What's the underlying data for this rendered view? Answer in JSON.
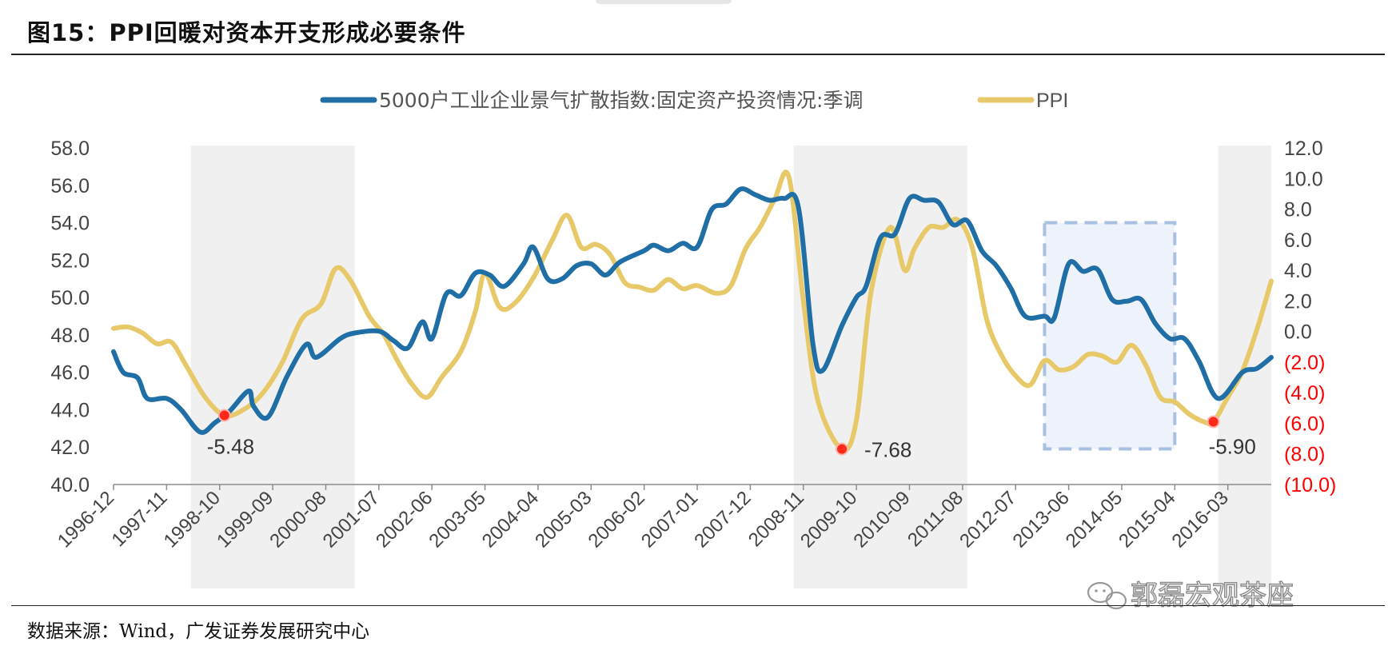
{
  "figure": {
    "title": "图15：PPI回暖对资本开支形成必要条件",
    "source": "数据来源：Wind，广发证券发展研究中心",
    "watermark": "郭磊宏观茶座"
  },
  "chart_data": {
    "type": "line",
    "legend_position": "top",
    "grid": false,
    "x_tick_labels": [
      "1996-12",
      "1997-11",
      "1998-10",
      "1999-09",
      "2000-08",
      "2001-07",
      "2002-06",
      "2003-05",
      "2004-04",
      "2005-03",
      "2006-02",
      "2007-01",
      "2007-12",
      "2008-11",
      "2009-10",
      "2010-09",
      "2011-08",
      "2012-07",
      "2013-06",
      "2014-05",
      "2015-04",
      "2016-03"
    ],
    "x_range": [
      "1996-12",
      "2016-12"
    ],
    "y_left": {
      "range": [
        40,
        58
      ],
      "tick_labels": [
        "40.0",
        "42.0",
        "44.0",
        "46.0",
        "48.0",
        "50.0",
        "52.0",
        "54.0",
        "56.0",
        "58.0"
      ]
    },
    "y_right": {
      "range": [
        -10,
        12
      ],
      "tick_labels": [
        "(10.0)",
        "(8.0)",
        "(6.0)",
        "(4.0)",
        "(2.0)",
        "0.0",
        "2.0",
        "4.0",
        "6.0",
        "8.0",
        "10.0",
        "12.0"
      ],
      "negative_label_color": "#ff0000"
    },
    "series": [
      {
        "name": "5000户工业企业景气扩散指数:固定资产投资情况:季调",
        "axis": "left",
        "color": "#1f6ea6",
        "points": [
          [
            "1996-12",
            47.1
          ],
          [
            "1997-02",
            46.0
          ],
          [
            "1997-05",
            45.7
          ],
          [
            "1997-07",
            44.6
          ],
          [
            "1997-11",
            44.6
          ],
          [
            "1998-02",
            44.0
          ],
          [
            "1998-06",
            42.8
          ],
          [
            "1998-09",
            43.3
          ],
          [
            "1998-12",
            43.9
          ],
          [
            "1999-04",
            45.0
          ],
          [
            "1999-05",
            44.2
          ],
          [
            "1999-08",
            43.6
          ],
          [
            "1999-12",
            45.8
          ],
          [
            "2000-04",
            47.5
          ],
          [
            "2000-06",
            46.8
          ],
          [
            "2000-11",
            47.8
          ],
          [
            "2001-02",
            48.1
          ],
          [
            "2001-07",
            48.2
          ],
          [
            "2001-10",
            47.7
          ],
          [
            "2002-01",
            47.3
          ],
          [
            "2002-04",
            48.7
          ],
          [
            "2002-06",
            47.8
          ],
          [
            "2002-09",
            50.2
          ],
          [
            "2002-12",
            50.1
          ],
          [
            "2003-03",
            51.3
          ],
          [
            "2003-06",
            51.2
          ],
          [
            "2003-09",
            50.6
          ],
          [
            "2004-01",
            51.8
          ],
          [
            "2004-03",
            52.7
          ],
          [
            "2004-06",
            51.0
          ],
          [
            "2004-09",
            51.0
          ],
          [
            "2004-12",
            51.7
          ],
          [
            "2005-03",
            51.8
          ],
          [
            "2005-06",
            51.2
          ],
          [
            "2005-09",
            51.9
          ],
          [
            "2006-02",
            52.5
          ],
          [
            "2006-04",
            52.8
          ],
          [
            "2006-07",
            52.5
          ],
          [
            "2006-10",
            52.9
          ],
          [
            "2007-01",
            52.7
          ],
          [
            "2007-04",
            54.7
          ],
          [
            "2007-07",
            55.0
          ],
          [
            "2007-10",
            55.8
          ],
          [
            "2008-01",
            55.5
          ],
          [
            "2008-04",
            55.2
          ],
          [
            "2008-07",
            55.3
          ],
          [
            "2008-10",
            54.8
          ],
          [
            "2009-01",
            47.5
          ],
          [
            "2009-03",
            46.1
          ],
          [
            "2009-07",
            48.5
          ],
          [
            "2009-10",
            50.0
          ],
          [
            "2009-12",
            50.6
          ],
          [
            "2010-03",
            53.2
          ],
          [
            "2010-06",
            53.4
          ],
          [
            "2010-09",
            55.3
          ],
          [
            "2010-12",
            55.2
          ],
          [
            "2011-03",
            55.1
          ],
          [
            "2011-06",
            53.9
          ],
          [
            "2011-09",
            54.1
          ],
          [
            "2011-12",
            52.5
          ],
          [
            "2012-03",
            51.7
          ],
          [
            "2012-06",
            50.5
          ],
          [
            "2012-09",
            49.0
          ],
          [
            "2013-01",
            49.0
          ],
          [
            "2013-03",
            48.9
          ],
          [
            "2013-06",
            51.8
          ],
          [
            "2013-09",
            51.4
          ],
          [
            "2013-12",
            51.5
          ],
          [
            "2014-03",
            49.9
          ],
          [
            "2014-06",
            49.8
          ],
          [
            "2014-09",
            49.9
          ],
          [
            "2014-12",
            48.6
          ],
          [
            "2015-03",
            47.8
          ],
          [
            "2015-06",
            47.8
          ],
          [
            "2015-09",
            46.6
          ],
          [
            "2016-01",
            44.6
          ],
          [
            "2016-06",
            46.0
          ],
          [
            "2016-09",
            46.2
          ],
          [
            "2016-12",
            46.8
          ]
        ]
      },
      {
        "name": "PPI",
        "axis": "right",
        "color": "#e8c96a",
        "points": [
          [
            "1996-12",
            0.2
          ],
          [
            "1997-03",
            0.3
          ],
          [
            "1997-06",
            -0.1
          ],
          [
            "1997-09",
            -0.8
          ],
          [
            "1997-12",
            -0.7
          ],
          [
            "1998-03",
            -2.2
          ],
          [
            "1998-07",
            -4.3
          ],
          [
            "1998-11",
            -5.48
          ],
          [
            "1999-03",
            -5.1
          ],
          [
            "1999-07",
            -4.0
          ],
          [
            "1999-11",
            -2.0
          ],
          [
            "2000-03",
            0.8
          ],
          [
            "2000-07",
            1.8
          ],
          [
            "2000-10",
            4.1
          ],
          [
            "2001-01",
            3.4
          ],
          [
            "2001-05",
            1.0
          ],
          [
            "2001-08",
            -0.2
          ],
          [
            "2001-11",
            -2.0
          ],
          [
            "2002-02",
            -3.5
          ],
          [
            "2002-05",
            -4.3
          ],
          [
            "2002-08",
            -3.0
          ],
          [
            "2002-12",
            -1.3
          ],
          [
            "2003-03",
            1.3
          ],
          [
            "2003-05",
            3.8
          ],
          [
            "2003-08",
            1.6
          ],
          [
            "2003-11",
            1.8
          ],
          [
            "2004-03",
            3.5
          ],
          [
            "2004-07",
            6.0
          ],
          [
            "2004-10",
            7.6
          ],
          [
            "2005-01",
            5.5
          ],
          [
            "2005-04",
            5.7
          ],
          [
            "2005-07",
            5.0
          ],
          [
            "2005-10",
            3.2
          ],
          [
            "2006-01",
            2.9
          ],
          [
            "2006-04",
            2.7
          ],
          [
            "2006-07",
            3.4
          ],
          [
            "2006-10",
            2.8
          ],
          [
            "2007-01",
            3.0
          ],
          [
            "2007-05",
            2.5
          ],
          [
            "2007-08",
            3.0
          ],
          [
            "2007-11",
            5.4
          ],
          [
            "2008-02",
            6.8
          ],
          [
            "2008-05",
            8.6
          ],
          [
            "2008-08",
            10.1
          ],
          [
            "2008-11",
            2.0
          ],
          [
            "2009-02",
            -4.5
          ],
          [
            "2009-07",
            -7.68
          ],
          [
            "2009-10",
            -5.8
          ],
          [
            "2010-01",
            2.5
          ],
          [
            "2010-05",
            6.8
          ],
          [
            "2010-08",
            4.0
          ],
          [
            "2010-10",
            5.4
          ],
          [
            "2011-01",
            6.8
          ],
          [
            "2011-04",
            6.8
          ],
          [
            "2011-07",
            7.3
          ],
          [
            "2011-10",
            5.5
          ],
          [
            "2012-01",
            0.8
          ],
          [
            "2012-04",
            -1.5
          ],
          [
            "2012-07",
            -2.9
          ],
          [
            "2012-10",
            -3.5
          ],
          [
            "2013-01",
            -1.9
          ],
          [
            "2013-04",
            -2.5
          ],
          [
            "2013-07",
            -2.3
          ],
          [
            "2013-10",
            -1.5
          ],
          [
            "2014-01",
            -1.6
          ],
          [
            "2014-04",
            -2.0
          ],
          [
            "2014-07",
            -0.9
          ],
          [
            "2014-10",
            -2.2
          ],
          [
            "2015-01",
            -4.3
          ],
          [
            "2015-04",
            -4.6
          ],
          [
            "2015-07",
            -5.4
          ],
          [
            "2015-10",
            -5.9
          ],
          [
            "2015-12",
            -5.9
          ],
          [
            "2016-03",
            -4.3
          ],
          [
            "2016-06",
            -2.6
          ],
          [
            "2016-09",
            0.1
          ],
          [
            "2016-12",
            3.3
          ]
        ]
      }
    ],
    "shaded_periods": [
      [
        "1998-04",
        "2001-02"
      ],
      [
        "2008-09",
        "2011-09"
      ],
      [
        "2016-01",
        "2016-12"
      ]
    ],
    "highlight_box": {
      "style": "dashed",
      "range": [
        "2013-01",
        "2015-04"
      ],
      "y_left": [
        41.9,
        54.0
      ]
    },
    "annotations": [
      {
        "x": "1998-11",
        "y": -5.48,
        "axis": "right",
        "label": "-5.48"
      },
      {
        "x": "2009-07",
        "y": -7.68,
        "axis": "right",
        "label": "-7.68"
      },
      {
        "x": "2015-12",
        "y": -5.9,
        "axis": "right",
        "label": "-5.90"
      }
    ]
  }
}
